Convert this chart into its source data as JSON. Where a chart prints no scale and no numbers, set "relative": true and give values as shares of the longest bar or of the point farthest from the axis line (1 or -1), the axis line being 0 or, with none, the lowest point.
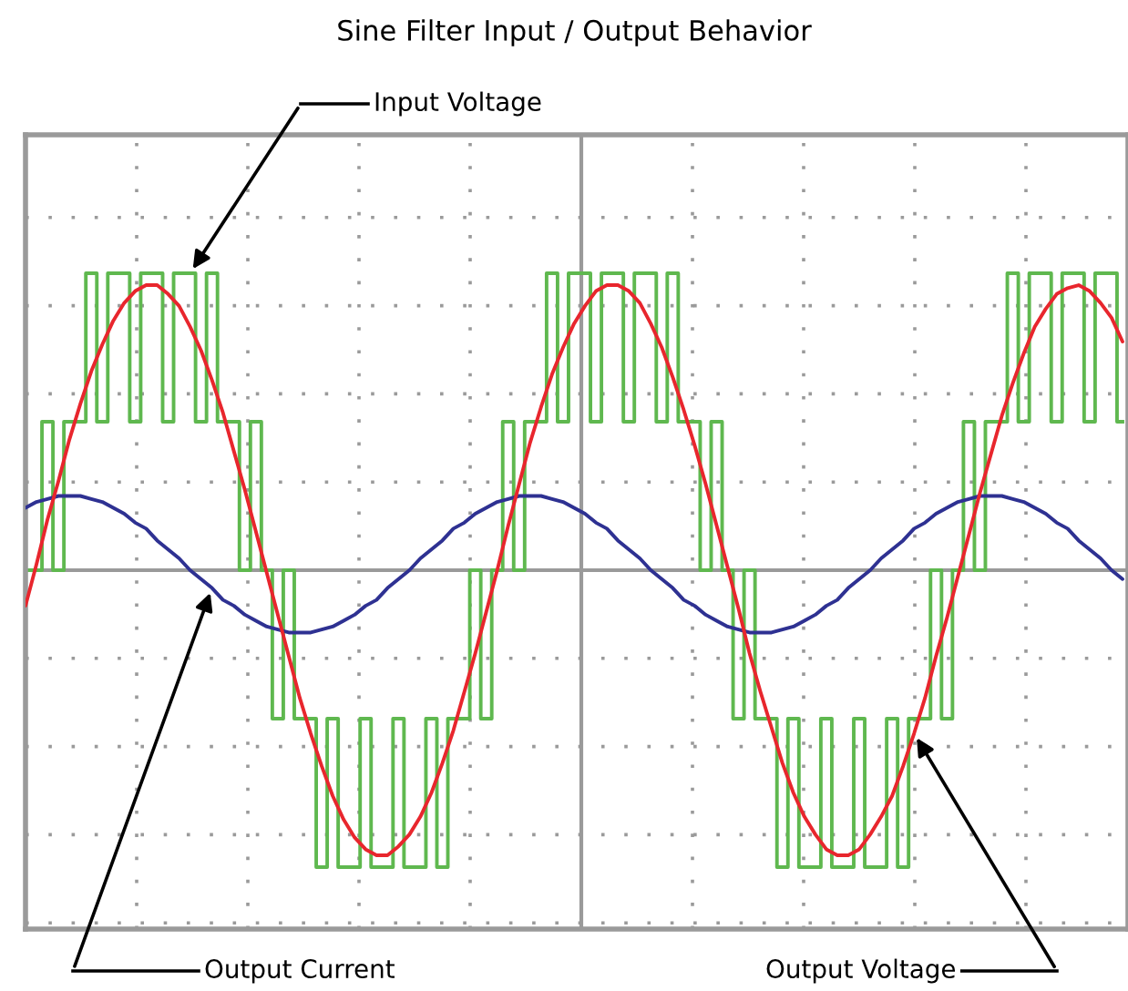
{
  "chart_data": {
    "type": "line",
    "title": "Sine Filter Input / Output Behavior",
    "relative": true,
    "grid": true,
    "tick_labels": false,
    "categories": [
      null,
      null,
      null,
      null,
      null,
      null,
      null,
      null,
      null,
      null,
      null,
      null,
      null,
      null,
      null,
      null,
      null,
      null,
      null,
      null,
      null,
      null,
      null,
      null,
      null,
      null,
      null,
      null,
      null,
      null,
      null,
      null,
      null,
      null,
      null,
      null,
      null,
      null,
      null,
      null,
      null,
      null,
      null,
      null,
      null,
      null,
      null,
      null,
      null,
      null,
      null,
      null,
      null,
      null,
      null,
      null,
      null,
      null,
      null,
      null,
      null,
      null,
      null,
      null,
      null,
      null,
      null,
      null,
      null,
      null,
      null,
      null,
      null,
      null,
      null,
      null,
      null,
      null,
      null,
      null,
      null,
      null,
      null,
      null,
      null,
      null,
      null,
      null,
      null,
      null,
      null,
      null,
      null,
      null,
      null,
      null,
      null,
      null,
      null,
      null,
      null
    ],
    "series": [
      {
        "type": "step",
        "color": "#5fb84f",
        "values": [
          0,
          0,
          0.5,
          0,
          0.5,
          0.5,
          1,
          0.5,
          1,
          1,
          0.5,
          1,
          1,
          0.5,
          1,
          1,
          0.5,
          1,
          0.5,
          0.5,
          0,
          0.5,
          0,
          -0.5,
          0,
          -0.5,
          -0.5,
          -1,
          -0.5,
          -1,
          -1,
          -0.5,
          -1,
          -1,
          -0.5,
          -1,
          -1,
          -0.5,
          -1,
          -0.5,
          -0.5,
          0,
          -0.5,
          0,
          0.5,
          0,
          0.5,
          0.5,
          1,
          0.5,
          1,
          1,
          0.5,
          1,
          1,
          0.5,
          1,
          1,
          0.5,
          1,
          0.5,
          0.5,
          0,
          0.5,
          0,
          -0.5,
          0,
          -0.5,
          -0.5,
          -1,
          -0.5,
          -1,
          -1,
          -0.5,
          -1,
          -1,
          -0.5,
          -1,
          -1,
          -0.5,
          -1,
          -0.5,
          -0.5,
          0,
          -0.5,
          0,
          0.5,
          0,
          0.5,
          0.5,
          1,
          0.5,
          1,
          1,
          0.5,
          1,
          1,
          0.5,
          1,
          1,
          0.5
        ]
      },
      {
        "color": "#2e3192",
        "values": [
          0.21,
          0.23,
          0.24,
          0.25,
          0.25,
          0.25,
          0.24,
          0.23,
          0.21,
          0.19,
          0.16,
          0.14,
          0.1,
          0.07,
          0.04,
          0.0,
          -0.03,
          -0.06,
          -0.1,
          -0.12,
          -0.15,
          -0.17,
          -0.19,
          -0.2,
          -0.21,
          -0.21,
          -0.21,
          -0.2,
          -0.19,
          -0.17,
          -0.15,
          -0.12,
          -0.1,
          -0.06,
          -0.03,
          0.0,
          0.04,
          0.07,
          0.1,
          0.14,
          0.16,
          0.19,
          0.21,
          0.23,
          0.24,
          0.25,
          0.25,
          0.25,
          0.24,
          0.23,
          0.21,
          0.19,
          0.16,
          0.14,
          0.1,
          0.07,
          0.04,
          0.0,
          -0.03,
          -0.06,
          -0.1,
          -0.12,
          -0.15,
          -0.17,
          -0.19,
          -0.2,
          -0.21,
          -0.21,
          -0.21,
          -0.2,
          -0.19,
          -0.17,
          -0.15,
          -0.12,
          -0.1,
          -0.06,
          -0.03,
          0.0,
          0.04,
          0.07,
          0.1,
          0.14,
          0.16,
          0.19,
          0.21,
          0.23,
          0.24,
          0.25,
          0.25,
          0.25,
          0.24,
          0.23,
          0.21,
          0.19,
          0.16,
          0.14,
          0.1,
          0.07,
          0.04,
          0.0,
          -0.03
        ]
      },
      {
        "color": "#e8262d",
        "values": [
          -0.12,
          0.02,
          0.17,
          0.3,
          0.44,
          0.56,
          0.67,
          0.76,
          0.84,
          0.9,
          0.94,
          0.96,
          0.96,
          0.93,
          0.89,
          0.82,
          0.74,
          0.64,
          0.53,
          0.4,
          0.27,
          0.13,
          -0.01,
          -0.15,
          -0.29,
          -0.43,
          -0.55,
          -0.66,
          -0.76,
          -0.84,
          -0.9,
          -0.94,
          -0.96,
          -0.96,
          -0.93,
          -0.89,
          -0.83,
          -0.75,
          -0.65,
          -0.54,
          -0.41,
          -0.28,
          -0.14,
          0.0,
          0.15,
          0.29,
          0.43,
          0.55,
          0.66,
          0.75,
          0.83,
          0.89,
          0.94,
          0.96,
          0.96,
          0.94,
          0.9,
          0.83,
          0.75,
          0.65,
          0.54,
          0.42,
          0.29,
          0.15,
          0.01,
          -0.13,
          -0.28,
          -0.41,
          -0.53,
          -0.65,
          -0.75,
          -0.83,
          -0.89,
          -0.94,
          -0.96,
          -0.96,
          -0.94,
          -0.89,
          -0.83,
          -0.76,
          -0.66,
          -0.55,
          -0.43,
          -0.29,
          -0.16,
          -0.02,
          0.12,
          0.26,
          0.39,
          0.52,
          0.63,
          0.73,
          0.82,
          0.88,
          0.93,
          0.95,
          0.96,
          0.94,
          0.9,
          0.85,
          0.77
        ]
      }
    ],
    "annotations": [
      "Input Voltage",
      "Output Current",
      "Output Voltage"
    ]
  }
}
